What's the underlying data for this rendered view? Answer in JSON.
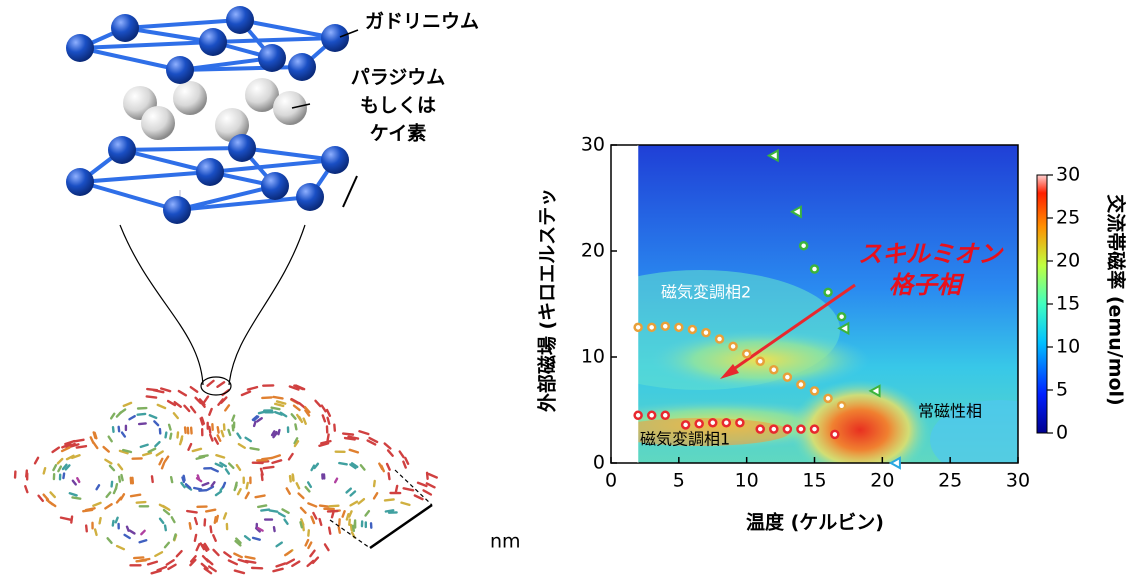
{
  "structure_labels": [
    "ガドリニウム",
    "パラジウム",
    "もしくは",
    "ケイ素",
    "nm"
  ],
  "chart_data": {
    "type": "scatter",
    "xlabel": "温度 (ケルビン)",
    "ylabel": "外部磁場 (キロエルステッ",
    "xlim": [
      0,
      30
    ],
    "ylim": [
      0,
      30
    ],
    "xticks": [
      0,
      5,
      10,
      15,
      20,
      25,
      30
    ],
    "yticks": [
      0,
      10,
      20,
      30
    ],
    "colorbar": {
      "label": "交流帯磁率 (emu/mol)",
      "lim": [
        0,
        30
      ],
      "ticks": [
        0,
        5,
        10,
        15,
        20,
        25,
        30
      ]
    },
    "annotations": [
      "磁気変調相2",
      "スキルミオン",
      "格子相",
      "常磁性相",
      "磁気変調相1"
    ],
    "series": [
      {
        "color": "#e8a03a",
        "marker": "circle",
        "x": [
          2,
          3,
          4,
          5,
          6,
          7,
          8,
          9,
          10,
          11,
          12,
          13,
          14,
          15,
          16,
          17
        ],
        "y": [
          12.8,
          12.8,
          12.9,
          12.8,
          12.6,
          12.3,
          11.7,
          11,
          10.3,
          9.6,
          8.8,
          8.1,
          7.4,
          6.8,
          6.1,
          5.4
        ]
      },
      {
        "color": "#e8282e",
        "marker": "circle",
        "x": [
          2,
          3,
          4,
          5.5,
          6.5,
          7.5,
          8.5,
          9.5,
          11,
          12,
          13,
          14,
          15,
          16.5
        ],
        "y": [
          4.5,
          4.5,
          4.5,
          3.6,
          3.7,
          3.8,
          3.8,
          3.8,
          3.2,
          3.2,
          3.2,
          3.2,
          3.2,
          2.7
        ]
      },
      {
        "color": "#3cb43c",
        "marker": "circle",
        "x": [
          14.2,
          15,
          16,
          17
        ],
        "y": [
          20.5,
          18.3,
          16.1,
          13.8
        ]
      },
      {
        "color": "#3cb43c",
        "marker": "triangle",
        "x": [
          12,
          13.7,
          17.2,
          19.5
        ],
        "y": [
          29,
          23.7,
          12.7,
          6.8
        ]
      },
      {
        "color": "#29a8e0",
        "marker": "triangle",
        "x": [
          21
        ],
        "y": [
          0
        ]
      }
    ]
  }
}
